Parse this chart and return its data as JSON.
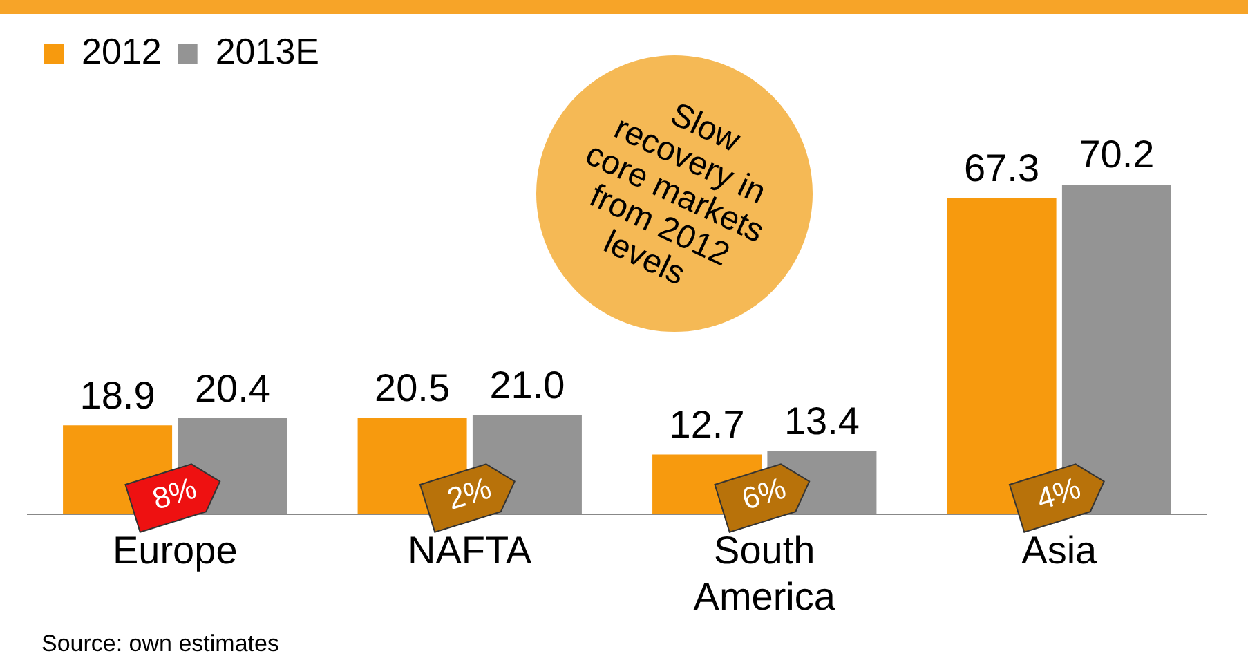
{
  "chart_data": {
    "type": "bar",
    "categories": [
      "Europe",
      "NAFTA",
      "South America",
      "Asia"
    ],
    "series": [
      {
        "name": "2012",
        "color": "#f79a0e",
        "values": [
          18.9,
          20.5,
          12.7,
          67.3
        ],
        "value_labels": [
          "18.9",
          "20.5",
          "12.7",
          "67.3"
        ]
      },
      {
        "name": "2013E",
        "color": "#949494",
        "values": [
          20.4,
          21.0,
          13.4,
          70.2
        ],
        "value_labels": [
          "20.4",
          "21.0",
          "13.4",
          "70.2"
        ]
      }
    ],
    "legend": "top left",
    "tick_labels": "x",
    "grid": false,
    "annotations": [
      {
        "text": "8%",
        "x": "Europe",
        "y": 4
      },
      {
        "text": "2%",
        "x": "NAFTA",
        "y": 4
      },
      {
        "text": "6%",
        "x": "South America",
        "y": 4
      },
      {
        "text": "4%",
        "x": "Asia",
        "y": 4
      },
      "Slow recovery in core markets from 2012 levels",
      "Source: own estimates"
    ]
  }
}
